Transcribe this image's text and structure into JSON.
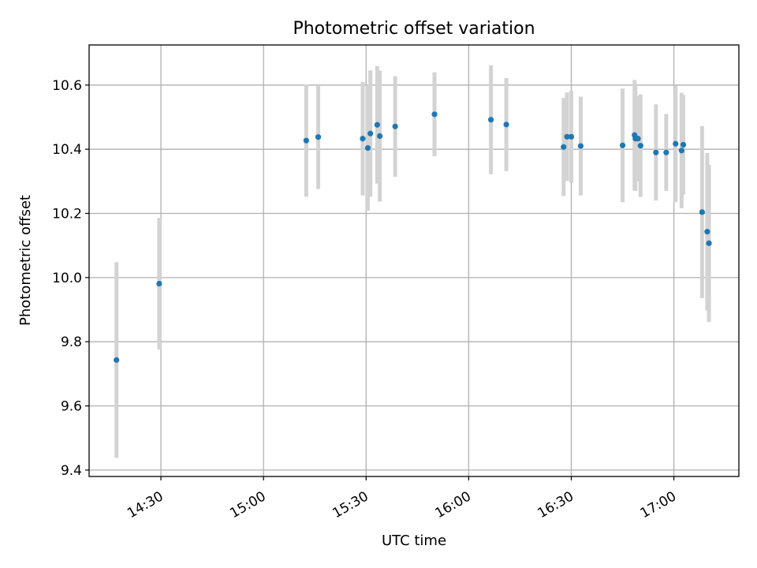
{
  "chart_data": {
    "type": "scatter",
    "title": "Photometric offset variation",
    "xlabel": "UTC time",
    "ylabel": "Photometric offset",
    "x_ticks": [
      "14:30",
      "15:00",
      "15:30",
      "16:00",
      "16:30",
      "17:00"
    ],
    "y_ticks": [
      "9.4",
      "9.6",
      "9.8",
      "10.0",
      "10.2",
      "10.4",
      "10.6"
    ],
    "xlim": [
      "14:09",
      "17:19"
    ],
    "ylim": [
      9.38,
      10.725
    ],
    "grid": true,
    "colors": {
      "point": "#1f77b4",
      "errorbar": "#d3d3d3",
      "grid": "#b0b0b0"
    },
    "series": [
      {
        "points": [
          {
            "t": "14:17:00",
            "y": 9.743,
            "err": 0.305
          },
          {
            "t": "14:29:30",
            "y": 9.981,
            "err": 0.205
          },
          {
            "t": "15:12:30",
            "y": 10.427,
            "err": 0.175
          },
          {
            "t": "15:16:00",
            "y": 10.438,
            "err": 0.162
          },
          {
            "t": "15:29:00",
            "y": 10.433,
            "err": 0.177
          },
          {
            "t": "15:30:30",
            "y": 10.404,
            "err": 0.196
          },
          {
            "t": "15:31:15",
            "y": 10.449,
            "err": 0.197
          },
          {
            "t": "15:33:15",
            "y": 10.476,
            "err": 0.183
          },
          {
            "t": "15:34:00",
            "y": 10.441,
            "err": 0.204
          },
          {
            "t": "15:38:30",
            "y": 10.471,
            "err": 0.157
          },
          {
            "t": "15:50:00",
            "y": 10.509,
            "err": 0.131
          },
          {
            "t": "16:06:30",
            "y": 10.492,
            "err": 0.17
          },
          {
            "t": "16:11:00",
            "y": 10.477,
            "err": 0.145
          },
          {
            "t": "16:27:45",
            "y": 10.407,
            "err": 0.153
          },
          {
            "t": "16:28:45",
            "y": 10.439,
            "err": 0.138
          },
          {
            "t": "16:30:00",
            "y": 10.439,
            "err": 0.143
          },
          {
            "t": "16:32:45",
            "y": 10.41,
            "err": 0.154
          },
          {
            "t": "16:45:00",
            "y": 10.412,
            "err": 0.177
          },
          {
            "t": "16:48:30",
            "y": 10.444,
            "err": 0.172
          },
          {
            "t": "16:48:45",
            "y": 10.433,
            "err": 0.163
          },
          {
            "t": "16:49:30",
            "y": 10.433,
            "err": 0.133
          },
          {
            "t": "16:50:15",
            "y": 10.411,
            "err": 0.16
          },
          {
            "t": "16:54:45",
            "y": 10.39,
            "err": 0.15
          },
          {
            "t": "16:57:45",
            "y": 10.39,
            "err": 0.12
          },
          {
            "t": "17:00:30",
            "y": 10.417,
            "err": 0.182
          },
          {
            "t": "17:02:15",
            "y": 10.396,
            "err": 0.18
          },
          {
            "t": "17:02:45",
            "y": 10.414,
            "err": 0.155
          },
          {
            "t": "17:08:15",
            "y": 10.204,
            "err": 0.268
          },
          {
            "t": "17:09:45",
            "y": 10.143,
            "err": 0.245
          },
          {
            "t": "17:10:15",
            "y": 10.107,
            "err": 0.245
          }
        ]
      }
    ]
  }
}
